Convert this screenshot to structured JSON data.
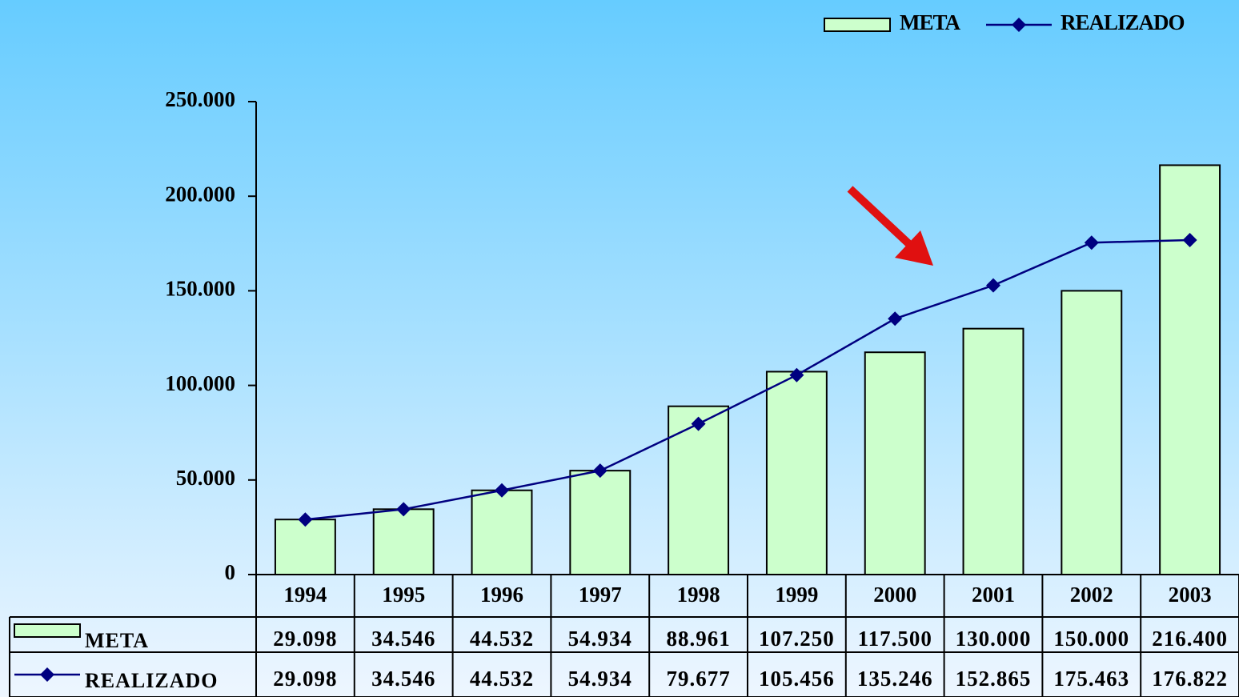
{
  "chart_data": {
    "type": "bar",
    "categories": [
      "1994",
      "1995",
      "1996",
      "1997",
      "1998",
      "1999",
      "2000",
      "2001",
      "2002",
      "2003"
    ],
    "series": [
      {
        "name": "META",
        "type": "bar",
        "color": "#ccffcc",
        "values": [
          29098,
          34546,
          44532,
          54934,
          88961,
          107250,
          117500,
          130000,
          150000,
          216400
        ],
        "value_labels": [
          "29.098",
          "34.546",
          "44.532",
          "54.934",
          "88.961",
          "107.250",
          "117.500",
          "130.000",
          "150.000",
          "216.400"
        ]
      },
      {
        "name": "REALIZADO",
        "type": "line",
        "color": "#000080",
        "values": [
          29098,
          34546,
          44532,
          54934,
          79677,
          105456,
          135246,
          152865,
          175463,
          176822
        ],
        "value_labels": [
          "29.098",
          "34.546",
          "44.532",
          "54.934",
          "79.677",
          "105.456",
          "135.246",
          "152.865",
          "175.463",
          "176.822"
        ]
      }
    ],
    "ylim": [
      0,
      250000
    ],
    "yticks": [
      0,
      {
        "value": 50000,
        "label": "50.000"
      },
      {
        "value": 100000,
        "label": "100.000"
      },
      {
        "value": 150000,
        "label": "150.000"
      },
      {
        "value": 200000,
        "label": "200.000"
      },
      {
        "value": 250000,
        "label": "250.000"
      }
    ],
    "legend": "top-right"
  }
}
